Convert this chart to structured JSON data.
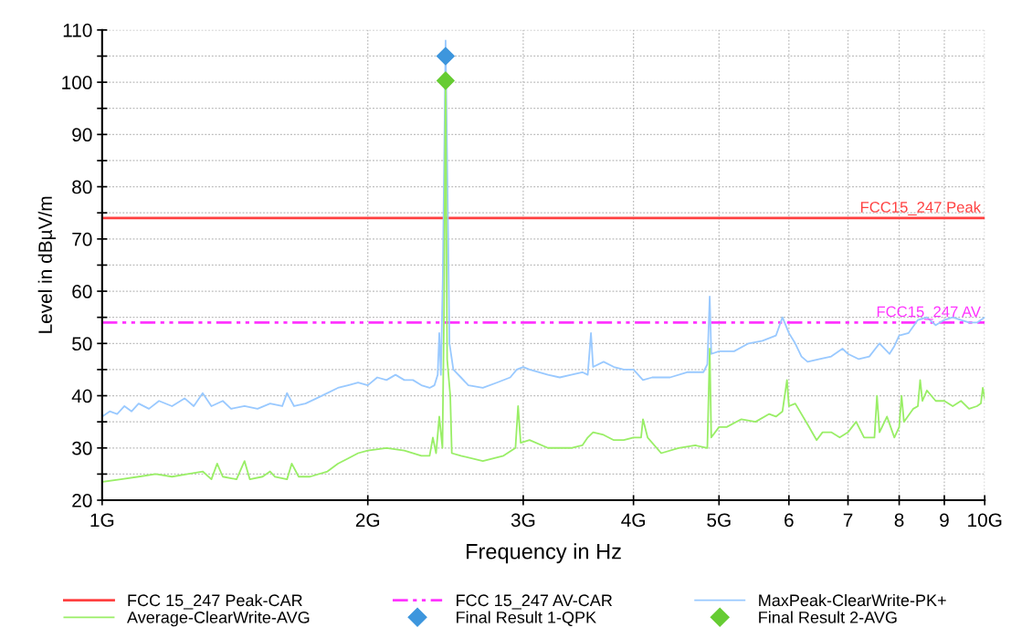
{
  "chart_data": {
    "type": "line",
    "xlabel": "Frequency in Hz",
    "ylabel": "Level in dBµV/m",
    "log": "x",
    "xlim": [
      1,
      10
    ],
    "ylim": [
      20,
      110
    ],
    "xticks": [
      {
        "value": 1,
        "label": "1G"
      },
      {
        "value": 2,
        "label": "2G"
      },
      {
        "value": 3,
        "label": "3G"
      },
      {
        "value": 4,
        "label": "4G"
      },
      {
        "value": 5,
        "label": "5G"
      },
      6,
      7,
      8,
      9,
      {
        "value": 10,
        "label": "10G"
      }
    ],
    "yticks": [
      20,
      {
        "value": 25,
        "label": null
      },
      30,
      {
        "value": 35,
        "label": null
      },
      40,
      {
        "value": 45,
        "label": null
      },
      50,
      {
        "value": 55,
        "label": null
      },
      60,
      {
        "value": 65,
        "label": null
      },
      70,
      {
        "value": 75,
        "label": null
      },
      80,
      {
        "value": 85,
        "label": null
      },
      90,
      {
        "value": 95,
        "label": null
      },
      100,
      {
        "value": 105,
        "label": null
      },
      110
    ],
    "grid": true,
    "legend": "bottom",
    "annotations": [
      {
        "text": "FCC15_247 Peak",
        "x": 10,
        "y": 74
      },
      {
        "text": "FCC15_247 AV",
        "x": 10,
        "y": 54
      }
    ],
    "series": [
      {
        "name": "FCC 15_247 Peak-CAR",
        "color": "#ff4040",
        "marker": "none",
        "line_style": "solid",
        "x": [
          1,
          10
        ],
        "values": [
          74,
          74
        ]
      },
      {
        "name": "FCC 15_247 AV-CAR",
        "color": "#ff33ff",
        "marker": "none",
        "line_style": "dashdot",
        "x": [
          1,
          10
        ],
        "values": [
          54,
          54
        ]
      },
      {
        "name": "MaxPeak-ClearWrite-PK+",
        "color": "#99c9ff",
        "marker": "none",
        "line_style": "solid",
        "x": [
          1.0,
          1.02,
          1.04,
          1.06,
          1.08,
          1.1,
          1.13,
          1.16,
          1.2,
          1.24,
          1.27,
          1.3,
          1.33,
          1.37,
          1.4,
          1.45,
          1.5,
          1.55,
          1.6,
          1.62,
          1.65,
          1.7,
          1.75,
          1.8,
          1.85,
          1.9,
          1.95,
          2.0,
          2.05,
          2.1,
          2.15,
          2.2,
          2.25,
          2.3,
          2.35,
          2.38,
          2.4,
          2.41,
          2.42,
          2.432,
          2.45,
          2.475,
          2.49,
          2.5,
          2.55,
          2.6,
          2.7,
          2.8,
          2.9,
          2.95,
          3.0,
          3.05,
          3.2,
          3.3,
          3.4,
          3.5,
          3.55,
          3.58,
          3.6,
          3.7,
          3.8,
          3.9,
          4.0,
          4.1,
          4.2,
          4.4,
          4.6,
          4.8,
          4.85,
          4.88,
          4.9,
          5.0,
          5.2,
          5.4,
          5.6,
          5.8,
          5.9,
          6.0,
          6.1,
          6.2,
          6.3,
          6.5,
          6.7,
          6.9,
          7.0,
          7.2,
          7.4,
          7.6,
          7.8,
          7.9,
          8.0,
          8.2,
          8.4,
          8.6,
          8.8,
          9.0,
          9.2,
          9.4,
          9.6,
          9.8,
          10.0
        ],
        "values": [
          36,
          37,
          36.5,
          38,
          37,
          38.5,
          37.5,
          39,
          38,
          39.5,
          38,
          40.5,
          38,
          39,
          37.5,
          38,
          37.5,
          38.5,
          38,
          40.5,
          38,
          38.5,
          39.5,
          40.5,
          41.5,
          42,
          42.5,
          42,
          43.5,
          43,
          44,
          43,
          43,
          42,
          41.5,
          42,
          44,
          52,
          44,
          62,
          108,
          50,
          47,
          45,
          43.5,
          42,
          41.5,
          42.5,
          43.5,
          45,
          45.5,
          45,
          44,
          43.5,
          44,
          44.5,
          44,
          52,
          45.5,
          46.5,
          45.5,
          45,
          45,
          43,
          43.5,
          43.5,
          44.5,
          44.5,
          46,
          59,
          48,
          48.5,
          48.5,
          50,
          50.5,
          51.5,
          55,
          52,
          50,
          47.5,
          46.5,
          47,
          47.5,
          49,
          48,
          47,
          47.5,
          50,
          48,
          49.5,
          51.5,
          52,
          54.5,
          55,
          53.5,
          54.5,
          55,
          54.5,
          54,
          54,
          55
        ]
      },
      {
        "name": "Average-ClearWrite-AVG",
        "color": "#99ee66",
        "marker": "none",
        "line_style": "solid",
        "x": [
          1.0,
          1.05,
          1.1,
          1.15,
          1.2,
          1.25,
          1.3,
          1.33,
          1.35,
          1.37,
          1.42,
          1.45,
          1.47,
          1.52,
          1.55,
          1.57,
          1.62,
          1.64,
          1.67,
          1.72,
          1.8,
          1.85,
          1.9,
          1.95,
          2.0,
          2.1,
          2.2,
          2.3,
          2.35,
          2.37,
          2.39,
          2.41,
          2.43,
          2.44,
          2.45,
          2.46,
          2.48,
          2.49,
          2.55,
          2.7,
          2.85,
          2.94,
          2.96,
          2.98,
          3.05,
          3.2,
          3.4,
          3.5,
          3.55,
          3.6,
          3.7,
          3.8,
          3.9,
          4.0,
          4.08,
          4.1,
          4.15,
          4.3,
          4.5,
          4.7,
          4.85,
          4.88,
          4.9,
          5.0,
          5.1,
          5.3,
          5.5,
          5.7,
          5.8,
          5.9,
          5.97,
          6.0,
          6.1,
          6.3,
          6.45,
          6.55,
          6.7,
          6.85,
          7.0,
          7.15,
          7.3,
          7.5,
          7.55,
          7.6,
          7.75,
          7.9,
          8.0,
          8.05,
          8.1,
          8.3,
          8.4,
          8.45,
          8.5,
          8.6,
          8.8,
          9.0,
          9.2,
          9.4,
          9.6,
          9.8,
          9.9,
          9.95,
          10.0
        ],
        "values": [
          23.5,
          24,
          24.5,
          25,
          24.5,
          25,
          25.5,
          24,
          27,
          24.5,
          24,
          27.5,
          24,
          24.5,
          25.5,
          24.5,
          24,
          27,
          24.5,
          24.5,
          25.5,
          27,
          28,
          29,
          29.5,
          30,
          29.5,
          28.5,
          28.5,
          32,
          29,
          36,
          30,
          56,
          101,
          47,
          40,
          29,
          28.5,
          27.5,
          28.5,
          30,
          38,
          31,
          31.5,
          30,
          30,
          30.5,
          32,
          33,
          32.5,
          31.5,
          31.5,
          32,
          32,
          35.5,
          32,
          29,
          30,
          30.5,
          30,
          49,
          32,
          34,
          34,
          35.5,
          35,
          36.5,
          36,
          37,
          43,
          38,
          38.5,
          34.5,
          31.5,
          33,
          33,
          32,
          33,
          35,
          32,
          32,
          40,
          33,
          36,
          32,
          34,
          40,
          35,
          37.5,
          38,
          43,
          39,
          41,
          39,
          39,
          38,
          39,
          37.5,
          38,
          38.5,
          41.5,
          39.5
        ]
      },
      {
        "name": "Final Result 1-QPK",
        "type": "scatter",
        "color": "#3d96dd",
        "marker": "diamond",
        "x": [
          2.45
        ],
        "values": [
          105
        ]
      },
      {
        "name": "Final Result 2-AVG",
        "type": "scatter",
        "color": "#66cc33",
        "marker": "diamond",
        "x": [
          2.45
        ],
        "values": [
          100.3
        ]
      }
    ]
  }
}
